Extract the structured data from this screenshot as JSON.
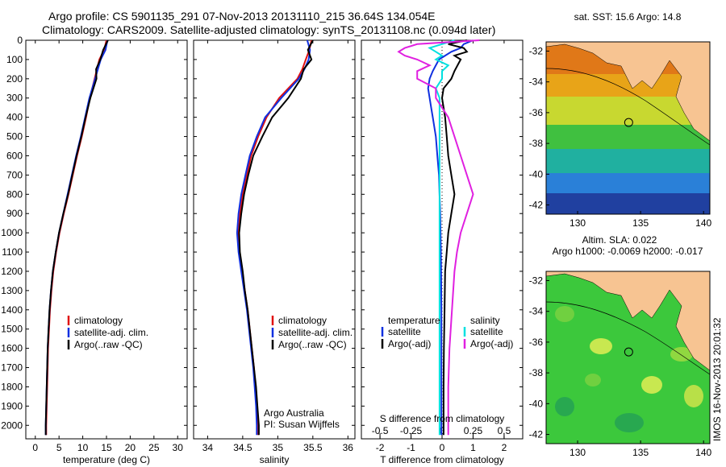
{
  "header": {
    "line1": "Argo profile: CS 5901135_291 07-Nov-2013 20131110_215 36.64S 134.054E",
    "line2": "Climatology: CARS2009. Satellite-adjusted climatology: synTS_20131108.nc (0.094d later)"
  },
  "colors": {
    "clim": "#e01010",
    "sat": "#1030e0",
    "argo": "#000000",
    "sal_sat": "#00e0e0",
    "sal_argo": "#e020e0"
  },
  "chart_data": [
    {
      "type": "line",
      "id": "temperature",
      "xlabel": "temperature (deg C)",
      "ylabel": "",
      "xlim": [
        -2,
        32
      ],
      "ylim": [
        2070,
        0
      ],
      "xticks": [
        0,
        5,
        10,
        15,
        20,
        25,
        30
      ],
      "yticks": [
        0,
        100,
        200,
        300,
        400,
        500,
        600,
        700,
        800,
        900,
        1000,
        1100,
        1200,
        1300,
        1400,
        1500,
        1600,
        1700,
        1800,
        1900,
        2000
      ],
      "depth": [
        0,
        50,
        100,
        150,
        200,
        300,
        400,
        500,
        600,
        700,
        800,
        900,
        1000,
        1100,
        1200,
        1300,
        1400,
        1500,
        1600,
        1700,
        1800,
        1900,
        2000,
        2050
      ],
      "series": [
        {
          "name": "climatology",
          "values": [
            15.0,
            14.5,
            13.5,
            13.0,
            12.5,
            11.5,
            10.7,
            9.8,
            8.8,
            7.9,
            7.0,
            6.0,
            5.1,
            4.4,
            3.8,
            3.4,
            3.1,
            2.9,
            2.7,
            2.6,
            2.5,
            2.4,
            2.3,
            2.3
          ]
        },
        {
          "name": "satellite-adj. clim.",
          "values": [
            15.2,
            14.8,
            13.8,
            13.2,
            12.6,
            11.4,
            10.5,
            9.6,
            8.6,
            7.7,
            6.8,
            5.9,
            5.0,
            4.3,
            3.7,
            3.3,
            3.0,
            2.8,
            2.6,
            2.5,
            2.4,
            2.3,
            2.2,
            2.2
          ]
        },
        {
          "name": "Argo(..raw -QC)",
          "values": [
            15.3,
            14.3,
            13.7,
            12.8,
            12.9,
            11.6,
            10.6,
            9.7,
            8.7,
            7.8,
            6.9,
            5.9,
            5.0,
            4.3,
            3.7,
            3.3,
            3.0,
            2.8,
            2.6,
            2.5,
            2.4,
            2.3,
            2.2,
            2.2
          ]
        }
      ],
      "legend": [
        "climatology",
        "satellite-adj. clim.",
        "Argo(..raw -QC)"
      ]
    },
    {
      "type": "line",
      "id": "salinity",
      "xlabel": "salinity",
      "xlim": [
        33.8,
        36.1
      ],
      "ylim": [
        2070,
        0
      ],
      "xticks": [
        34,
        34.5,
        35,
        35.5,
        36
      ],
      "xticklabels": [
        "34",
        "34.5",
        "35",
        "35.5",
        "36"
      ],
      "depth": [
        0,
        50,
        100,
        150,
        200,
        300,
        400,
        500,
        600,
        700,
        800,
        900,
        1000,
        1100,
        1200,
        1300,
        1400,
        1500,
        1600,
        1700,
        1800,
        1900,
        2000,
        2050
      ],
      "series": [
        {
          "name": "climatology",
          "values": [
            35.48,
            35.45,
            35.4,
            35.35,
            35.28,
            35.02,
            34.84,
            34.72,
            34.62,
            34.56,
            34.5,
            34.46,
            34.44,
            34.45,
            34.49,
            34.53,
            34.57,
            34.6,
            34.63,
            34.66,
            34.68,
            34.7,
            34.72,
            34.72
          ]
        },
        {
          "name": "satellite-adj. clim.",
          "values": [
            35.42,
            35.46,
            35.44,
            35.38,
            35.3,
            35.05,
            34.82,
            34.7,
            34.6,
            34.54,
            34.48,
            34.44,
            34.42,
            34.44,
            34.48,
            34.52,
            34.56,
            34.59,
            34.62,
            34.65,
            34.67,
            34.69,
            34.7,
            34.7
          ]
        },
        {
          "name": "Argo(..raw -QC)",
          "values": [
            35.5,
            35.43,
            35.48,
            35.37,
            35.33,
            35.15,
            34.92,
            34.78,
            34.65,
            34.58,
            34.52,
            34.48,
            34.45,
            34.46,
            34.5,
            34.53,
            34.57,
            34.6,
            34.63,
            34.66,
            34.69,
            34.71,
            34.73,
            34.73
          ]
        }
      ],
      "legend": [
        "climatology",
        "satellite-adj. clim.",
        "Argo(..raw -QC)"
      ],
      "annotations": [
        "Argo Australia",
        "PI: Susan Wijffels"
      ]
    },
    {
      "type": "line",
      "id": "difference",
      "xlabel": "T difference from climatology",
      "xlabel2": "S difference from climatology",
      "xlim": [
        -2.6,
        2.6
      ],
      "ylim": [
        2070,
        0
      ],
      "xticks": [
        -2,
        -1,
        0,
        1,
        2
      ],
      "xticks_top": [
        -0.5,
        -0.25,
        0,
        0.25,
        0.5
      ],
      "xticklabels_top": [
        "-0.5",
        "-0.25",
        "0",
        "0.25",
        "0.5"
      ],
      "depth": [
        0,
        20,
        40,
        60,
        80,
        100,
        130,
        160,
        200,
        250,
        300,
        350,
        400,
        500,
        600,
        700,
        800,
        900,
        1000,
        1100,
        1200,
        1400,
        1600,
        1800,
        2000,
        2050
      ],
      "series": [
        {
          "name": "temperature satellite",
          "values": [
            1.0,
            0.7,
            0.6,
            0.3,
            0.1,
            -0.1,
            -0.2,
            -0.3,
            -0.4,
            -0.45,
            -0.4,
            -0.35,
            -0.3,
            -0.2,
            -0.15,
            -0.1,
            -0.08,
            -0.06,
            -0.05,
            -0.04,
            -0.03,
            -0.02,
            -0.02,
            -0.02,
            -0.02,
            -0.02
          ]
        },
        {
          "name": "temperature Argo(-adj)",
          "values": [
            0.8,
            0.2,
            0.7,
            0.8,
            0.4,
            0.6,
            0.5,
            0.4,
            0.3,
            0.05,
            0.0,
            0.05,
            0.1,
            0.15,
            0.2,
            0.3,
            0.4,
            0.3,
            0.2,
            0.15,
            0.1,
            0.08,
            0.06,
            0.05,
            0.05,
            0.05
          ]
        },
        {
          "name": "salinity satellite",
          "values": [
            0.1,
            0.0,
            -0.1,
            -0.05,
            0.0,
            -0.05,
            0.05,
            0.0,
            0.0,
            -0.05,
            -0.02,
            -0.02,
            -0.02,
            -0.02,
            -0.02,
            -0.02,
            -0.02,
            -0.02,
            -0.02,
            -0.02,
            -0.02,
            -0.02,
            -0.02,
            -0.02,
            -0.02,
            -0.02
          ]
        },
        {
          "name": "salinity Argo(-adj)",
          "values": [
            0.3,
            -0.2,
            -0.3,
            -0.35,
            -0.3,
            -0.2,
            -0.1,
            -0.2,
            -0.2,
            -0.05,
            -0.05,
            0.0,
            0.05,
            0.1,
            0.15,
            0.2,
            0.25,
            0.2,
            0.15,
            0.12,
            0.1,
            0.08,
            0.06,
            0.05,
            0.05,
            0.05
          ]
        }
      ],
      "legend": {
        "temperature": [
          "satellite",
          "Argo(-adj)"
        ],
        "salinity": [
          "satellite",
          "Argo(-adj)"
        ]
      },
      "legend_titles": [
        "temperature",
        "salinity"
      ]
    },
    {
      "type": "heatmap",
      "id": "sst_map",
      "title": "sat. SST: 15.6 Argo: 14.8",
      "xlim": [
        127.5,
        140.5
      ],
      "ylim": [
        -42.6,
        -31.4
      ],
      "xticks": [
        130,
        135,
        140
      ],
      "yticks": [
        -32,
        -34,
        -36,
        -38,
        -40,
        -42
      ],
      "marker": {
        "lon": 134.054,
        "lat": -36.64
      }
    },
    {
      "type": "heatmap",
      "id": "sla_map",
      "title": "Altim. SLA: 0.022",
      "subtitle": "Argo h1000: -0.0069 h2000: -0.017",
      "xlim": [
        127.5,
        140.5
      ],
      "ylim": [
        -42.6,
        -31.4
      ],
      "xticks": [
        130,
        135,
        140
      ],
      "yticks": [
        -32,
        -34,
        -36,
        -38,
        -40,
        -42
      ],
      "marker": {
        "lon": 134.054,
        "lat": -36.64
      }
    }
  ],
  "footer_stamp": "IMOS 16-Nov-2013 20:01:32"
}
